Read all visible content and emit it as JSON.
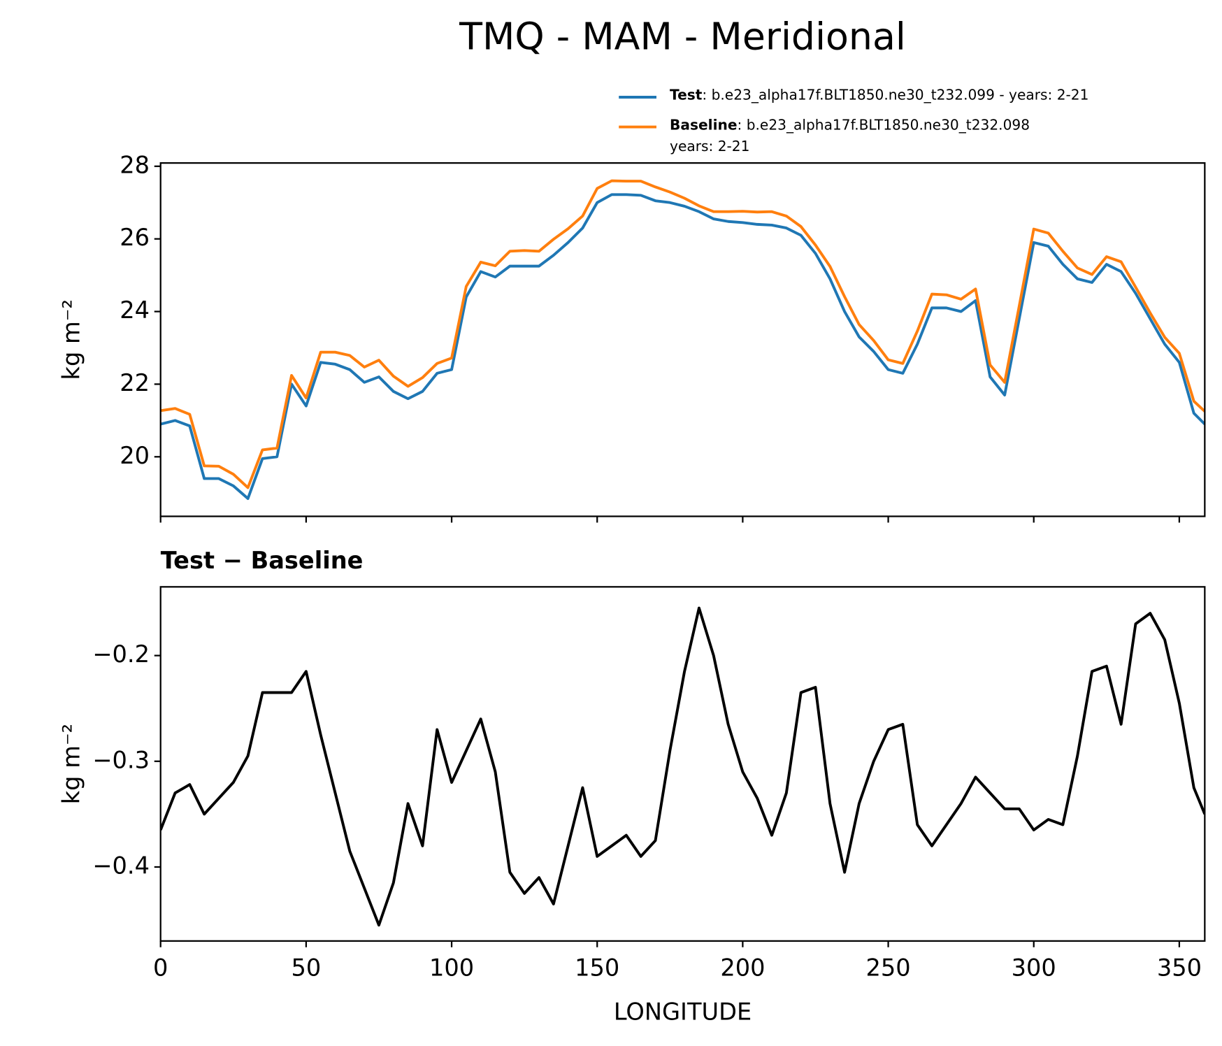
{
  "chart_data": [
    {
      "type": "line",
      "title": "TMQ - MAM - Meridional",
      "ylabel": "kg m⁻²",
      "x": [
        0,
        5,
        10,
        15,
        20,
        25,
        30,
        35,
        40,
        45,
        50,
        55,
        60,
        65,
        70,
        75,
        80,
        85,
        90,
        95,
        100,
        105,
        110,
        115,
        120,
        125,
        130,
        135,
        140,
        145,
        150,
        155,
        160,
        165,
        170,
        175,
        180,
        185,
        190,
        195,
        200,
        205,
        210,
        215,
        220,
        225,
        230,
        235,
        240,
        245,
        250,
        255,
        260,
        265,
        270,
        275,
        280,
        285,
        290,
        295,
        300,
        305,
        310,
        315,
        320,
        325,
        330,
        335,
        340,
        345,
        350,
        355,
        358.75
      ],
      "series": [
        {
          "name": "Test",
          "description": [
            ": b.e23_alpha17f.BLT1850.ne30_t232.099 - years: 2-21"
          ],
          "color": "#1f77b4",
          "values": [
            20.9,
            21.0,
            20.85,
            19.4,
            19.4,
            19.2,
            18.85,
            19.95,
            20.0,
            22.0,
            21.4,
            22.6,
            22.55,
            22.4,
            22.05,
            22.2,
            21.8,
            21.6,
            21.8,
            22.3,
            22.4,
            24.4,
            25.1,
            24.95,
            25.25,
            25.25,
            25.25,
            25.55,
            25.9,
            26.3,
            27.0,
            27.22,
            27.22,
            27.2,
            27.05,
            27.0,
            26.9,
            26.75,
            26.55,
            26.48,
            26.45,
            26.4,
            26.38,
            26.3,
            26.1,
            25.6,
            24.9,
            24.0,
            23.3,
            22.9,
            22.4,
            22.3,
            23.1,
            24.1,
            24.1,
            24.0,
            24.3,
            22.2,
            21.7,
            23.8,
            25.9,
            25.8,
            25.3,
            24.9,
            24.8,
            25.3,
            25.1,
            24.5,
            23.8,
            23.1,
            22.6,
            21.2,
            20.9
          ]
        },
        {
          "name": "Baseline",
          "description": [
            ": b.e23_alpha17f.BLT1850.ne30_t232.098",
            "years: 2-21"
          ],
          "color": "#ff7f0e",
          "values": [
            21.27,
            21.33,
            21.17,
            19.75,
            19.74,
            19.52,
            19.15,
            20.19,
            20.24,
            22.24,
            21.62,
            22.88,
            22.88,
            22.79,
            22.47,
            22.66,
            22.22,
            21.94,
            22.18,
            22.57,
            22.72,
            24.69,
            25.36,
            25.26,
            25.66,
            25.68,
            25.66,
            25.99,
            26.28,
            26.63,
            27.39,
            27.6,
            27.59,
            27.59,
            27.43,
            27.29,
            27.12,
            26.91,
            26.75,
            26.75,
            26.76,
            26.74,
            26.75,
            26.63,
            26.34,
            25.83,
            25.24,
            24.41,
            23.64,
            23.2,
            22.67,
            22.57,
            23.46,
            24.48,
            24.46,
            24.34,
            24.62,
            22.53,
            22.05,
            24.15,
            26.27,
            26.16,
            25.66,
            25.2,
            25.02,
            25.51,
            25.37,
            24.67,
            23.96,
            23.29,
            22.85,
            21.53,
            21.25
          ]
        }
      ],
      "xlim": [
        0,
        358.75
      ],
      "ylim": [
        18.36,
        28.09
      ],
      "xticks": [
        0,
        50,
        100,
        150,
        200,
        250,
        300,
        350
      ],
      "show_xtick_labels": false,
      "yticks": [
        20,
        22,
        24,
        26,
        28
      ],
      "legend": "upper right",
      "grid": false
    },
    {
      "type": "line",
      "title": "Test − Baseline",
      "xlabel": "LONGITUDE",
      "ylabel": "kg m⁻²",
      "x": [
        0,
        5,
        10,
        15,
        20,
        25,
        30,
        35,
        40,
        45,
        50,
        55,
        60,
        65,
        70,
        75,
        80,
        85,
        90,
        95,
        100,
        105,
        110,
        115,
        120,
        125,
        130,
        135,
        140,
        145,
        150,
        155,
        160,
        165,
        170,
        175,
        180,
        185,
        190,
        195,
        200,
        205,
        210,
        215,
        220,
        225,
        230,
        235,
        240,
        245,
        250,
        255,
        260,
        265,
        270,
        275,
        280,
        285,
        290,
        295,
        300,
        305,
        310,
        315,
        320,
        325,
        330,
        335,
        340,
        345,
        350,
        355,
        358.75
      ],
      "values": [
        -0.365,
        -0.33,
        -0.322,
        -0.35,
        -0.335,
        -0.32,
        -0.295,
        -0.235,
        -0.235,
        -0.235,
        -0.215,
        -0.275,
        -0.33,
        -0.385,
        -0.42,
        -0.455,
        -0.415,
        -0.34,
        -0.38,
        -0.27,
        -0.32,
        -0.29,
        -0.26,
        -0.31,
        -0.405,
        -0.425,
        -0.41,
        -0.435,
        -0.38,
        -0.325,
        -0.39,
        -0.38,
        -0.37,
        -0.39,
        -0.375,
        -0.29,
        -0.215,
        -0.155,
        -0.2,
        -0.265,
        -0.31,
        -0.335,
        -0.37,
        -0.33,
        -0.235,
        -0.23,
        -0.34,
        -0.405,
        -0.34,
        -0.3,
        -0.27,
        -0.265,
        -0.36,
        -0.38,
        -0.36,
        -0.34,
        -0.315,
        -0.33,
        -0.345,
        -0.345,
        -0.365,
        -0.355,
        -0.36,
        -0.295,
        -0.215,
        -0.21,
        -0.265,
        -0.17,
        -0.16,
        -0.185,
        -0.245,
        -0.325,
        -0.35
      ],
      "color": "#000000",
      "xlim": [
        0,
        358.75
      ],
      "ylim": [
        -0.47,
        -0.135
      ],
      "xticks": [
        0,
        50,
        100,
        150,
        200,
        250,
        300,
        350
      ],
      "show_xtick_labels": true,
      "yticks": [
        {
          "value": -0.2,
          "label": "−0.2"
        },
        {
          "value": -0.3,
          "label": "−0.3"
        },
        {
          "value": -0.4,
          "label": "−0.4"
        }
      ],
      "grid": false
    }
  ]
}
